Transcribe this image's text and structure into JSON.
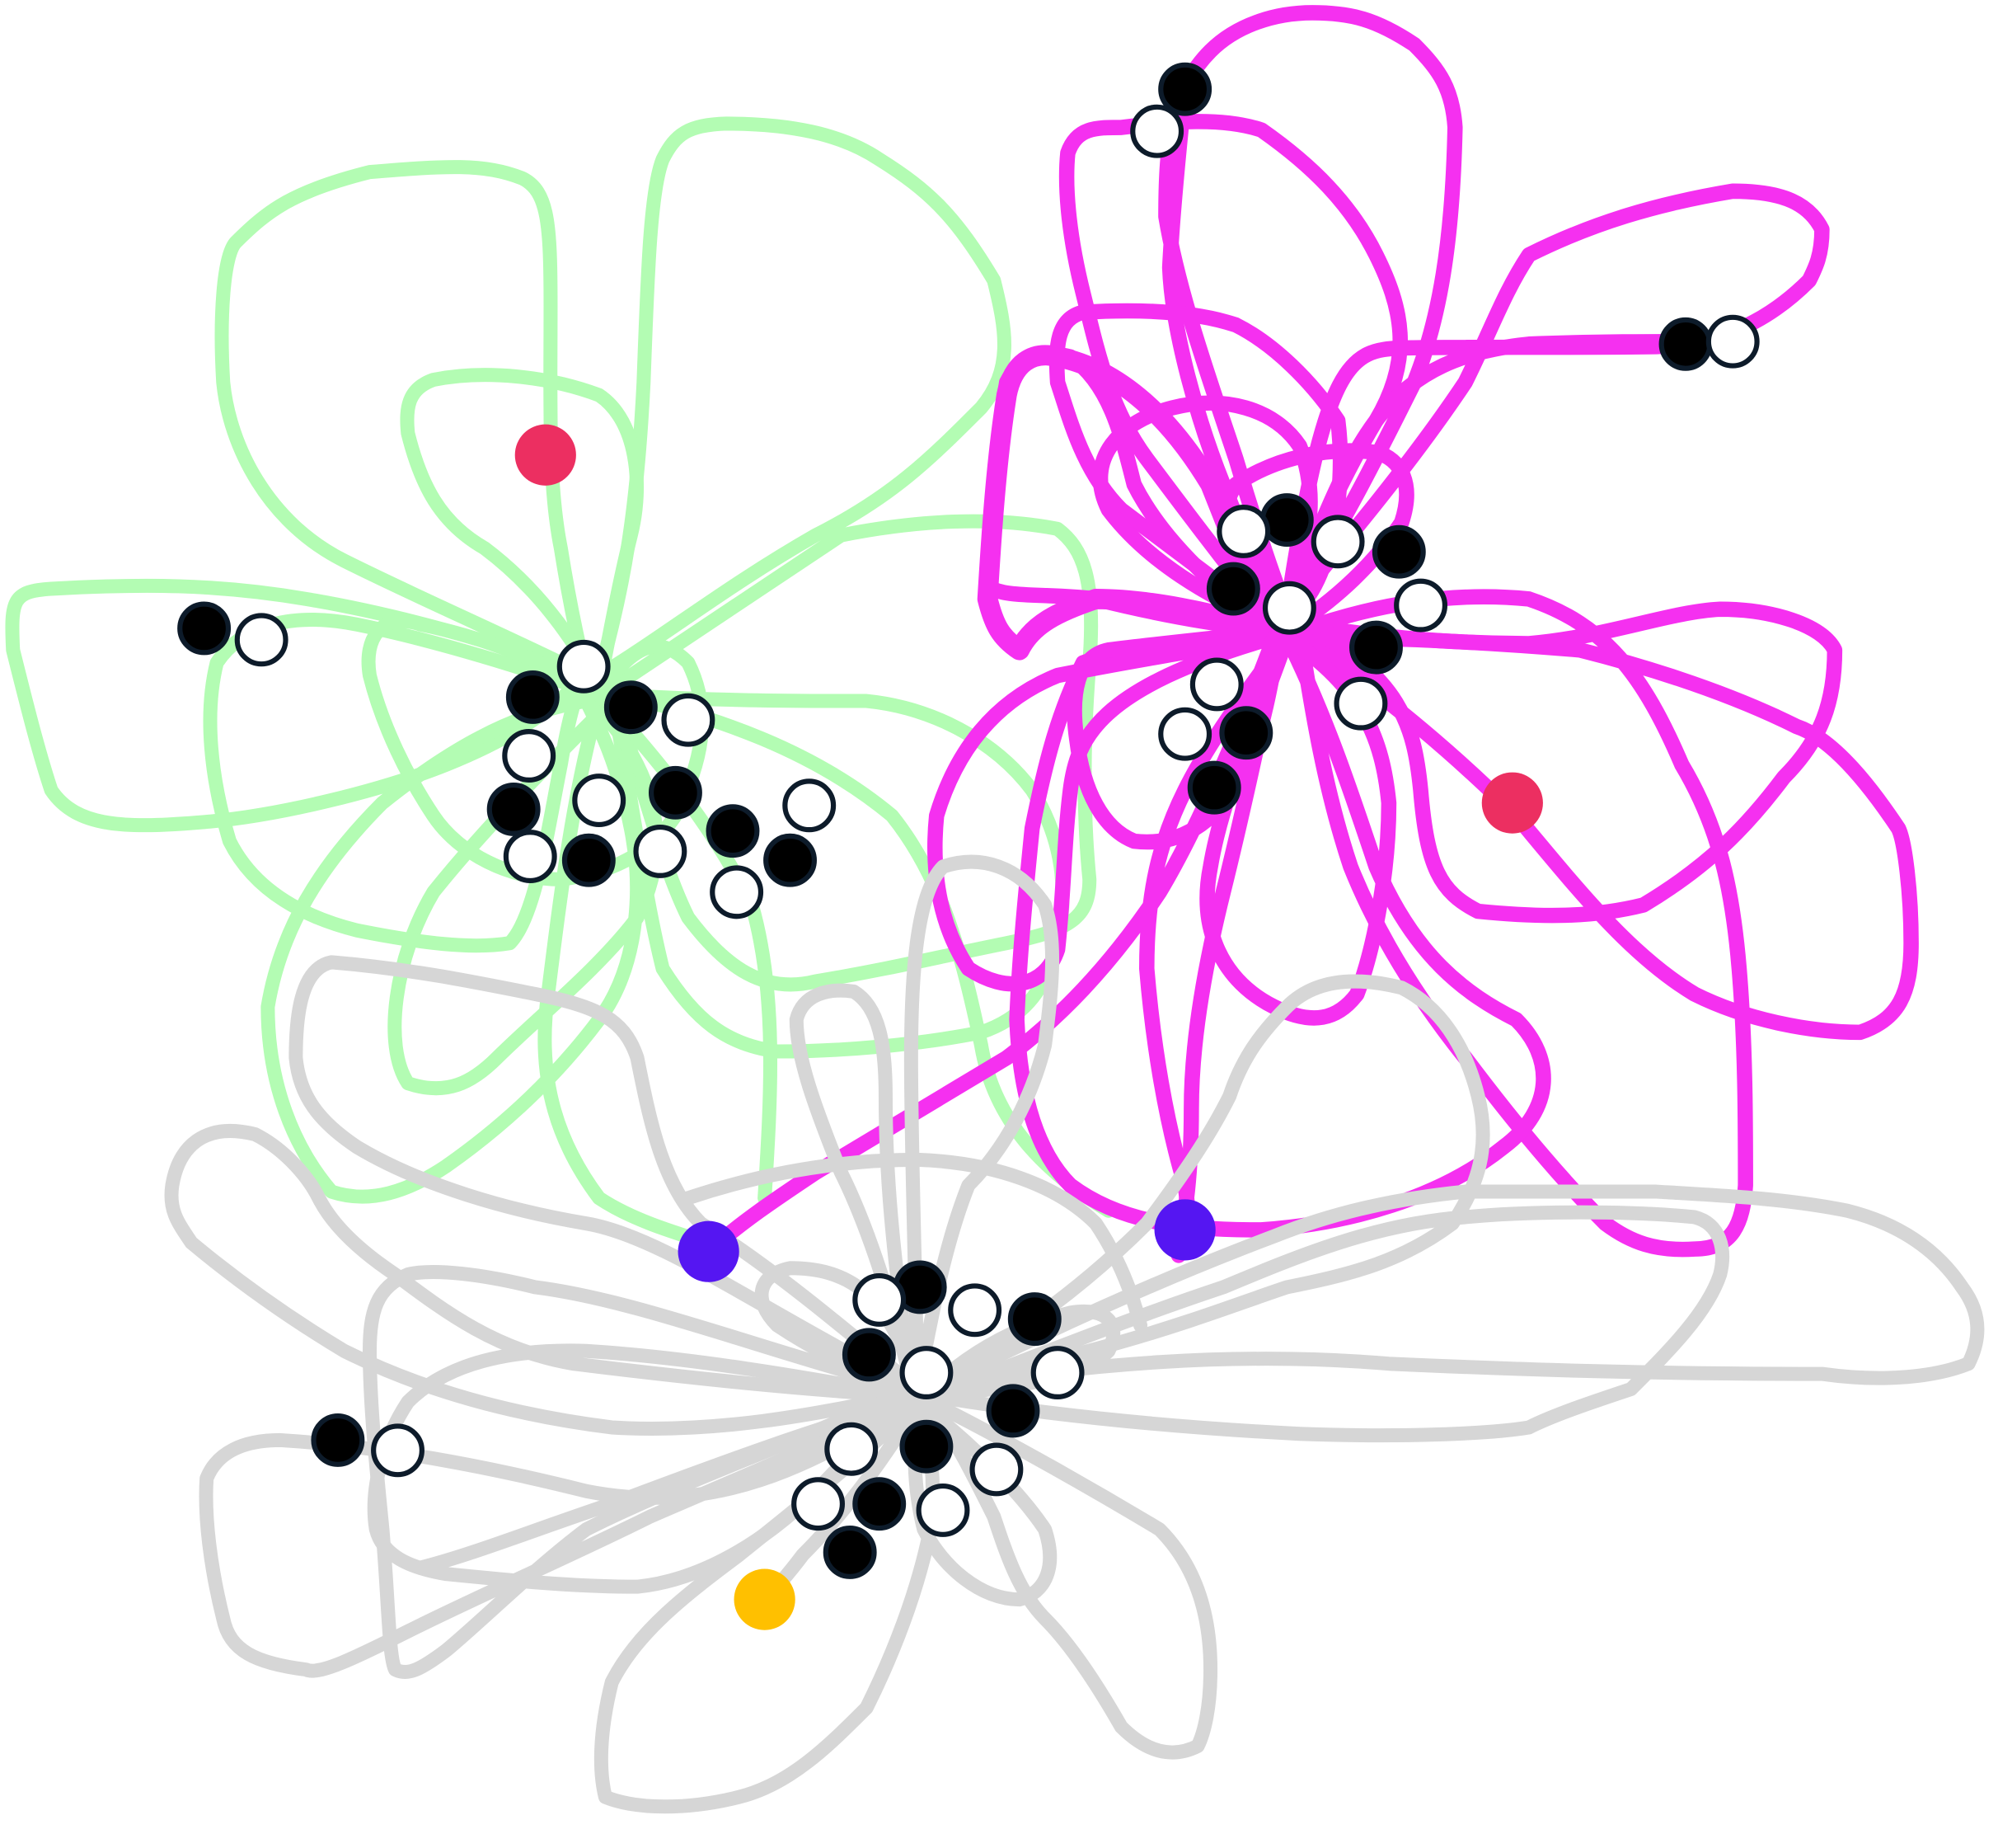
{
  "diagram": {
    "background": "#ffffff",
    "palette": {
      "green_loop": "#b3fcb3",
      "magenta_loop": "#f530f0",
      "gray_loop": "#d6d6d6",
      "red_marker": "#ec2f61",
      "blue_marker": "#5516f2",
      "yellow_marker": "#ffc000",
      "black_pin": "#000000",
      "white_pin": "#ffffff",
      "pin_outline": "#0d1b2a"
    },
    "groups": [
      {
        "name": "green-cluster",
        "color_key": "green_loop"
      },
      {
        "name": "magenta-cluster",
        "color_key": "magenta_loop"
      },
      {
        "name": "gray-cluster",
        "color_key": "gray_loop"
      }
    ]
  }
}
